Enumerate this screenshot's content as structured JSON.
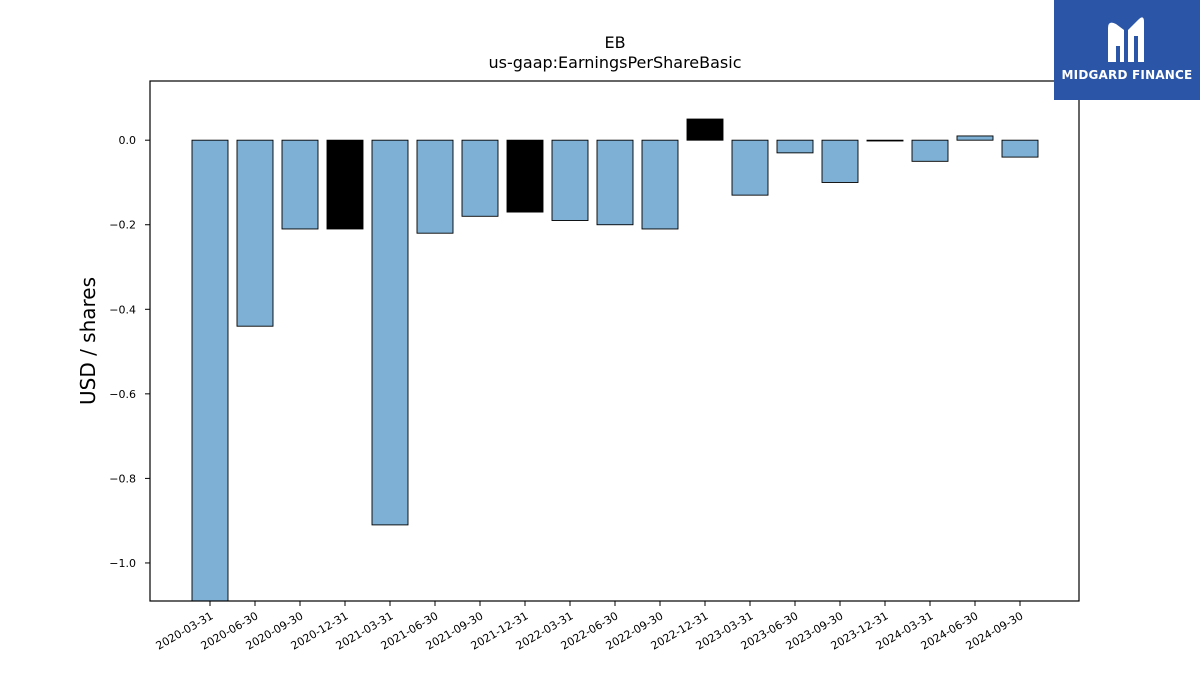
{
  "chart_data": {
    "type": "bar",
    "title": "EB",
    "subtitle": "us-gaap:EarningsPerShareBasic",
    "xlabel": "",
    "ylabel": "USD / shares",
    "ylim": [
      -1.09,
      0.14
    ],
    "yticks": [
      0.0,
      -0.2,
      -0.4,
      -0.6,
      -0.8,
      -1.0
    ],
    "ytick_labels": [
      "0.0",
      "−0.2",
      "−0.4",
      "−0.6",
      "−0.8",
      "−1.0"
    ],
    "grid": false,
    "categories": [
      "2020-03-31",
      "2020-06-30",
      "2020-09-30",
      "2020-12-31",
      "2021-03-31",
      "2021-06-30",
      "2021-09-30",
      "2021-12-31",
      "2022-03-31",
      "2022-06-30",
      "2022-09-30",
      "2022-12-31",
      "2023-03-31",
      "2023-06-30",
      "2023-09-30",
      "2023-12-31",
      "2024-03-31",
      "2024-06-30",
      "2024-09-30"
    ],
    "values": [
      -1.09,
      -0.44,
      -0.21,
      -0.21,
      -0.91,
      -0.22,
      -0.18,
      -0.17,
      -0.19,
      -0.2,
      -0.21,
      0.05,
      -0.13,
      -0.03,
      -0.1,
      0.0,
      -0.05,
      0.01,
      -0.04
    ],
    "highlight": [
      false,
      false,
      false,
      true,
      false,
      false,
      false,
      true,
      false,
      false,
      false,
      true,
      false,
      false,
      false,
      false,
      false,
      false,
      false
    ],
    "colors": {
      "bar": "#7eb0d5",
      "highlight": "#000000",
      "edge": "#000000"
    }
  },
  "logo": {
    "text": "MIDGARD FINANCE",
    "icon": "midgard-logo-icon",
    "background": "#2b56a8"
  }
}
